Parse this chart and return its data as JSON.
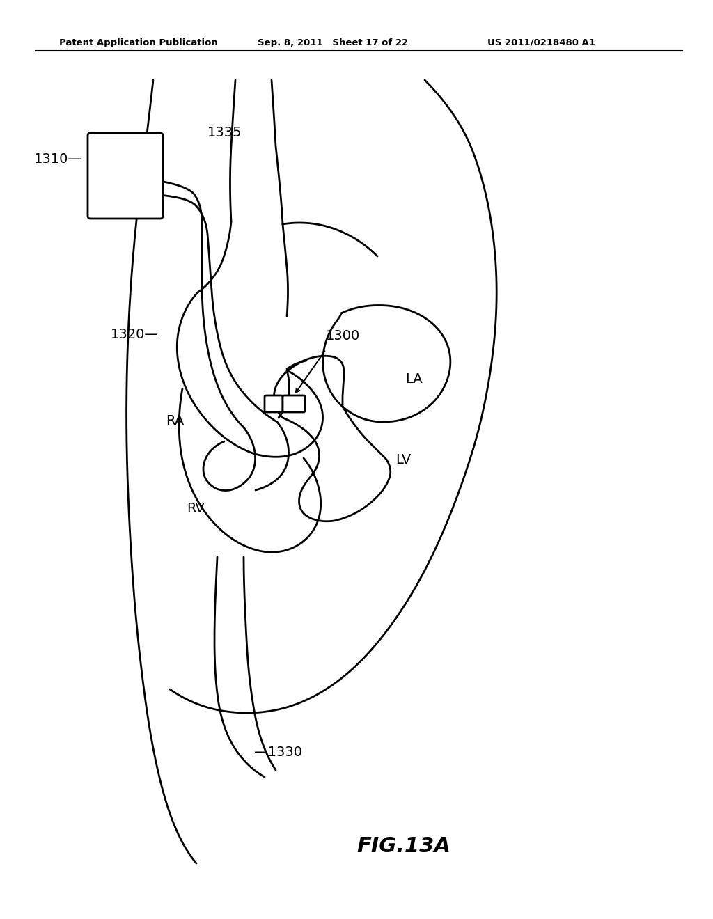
{
  "header_left": "Patent Application Publication",
  "header_mid": "Sep. 8, 2011   Sheet 17 of 22",
  "header_right": "US 2011/0218480 A1",
  "fig_label": "FIG.13A",
  "background_color": "#ffffff",
  "line_color": "#000000",
  "line_width": 2.0
}
